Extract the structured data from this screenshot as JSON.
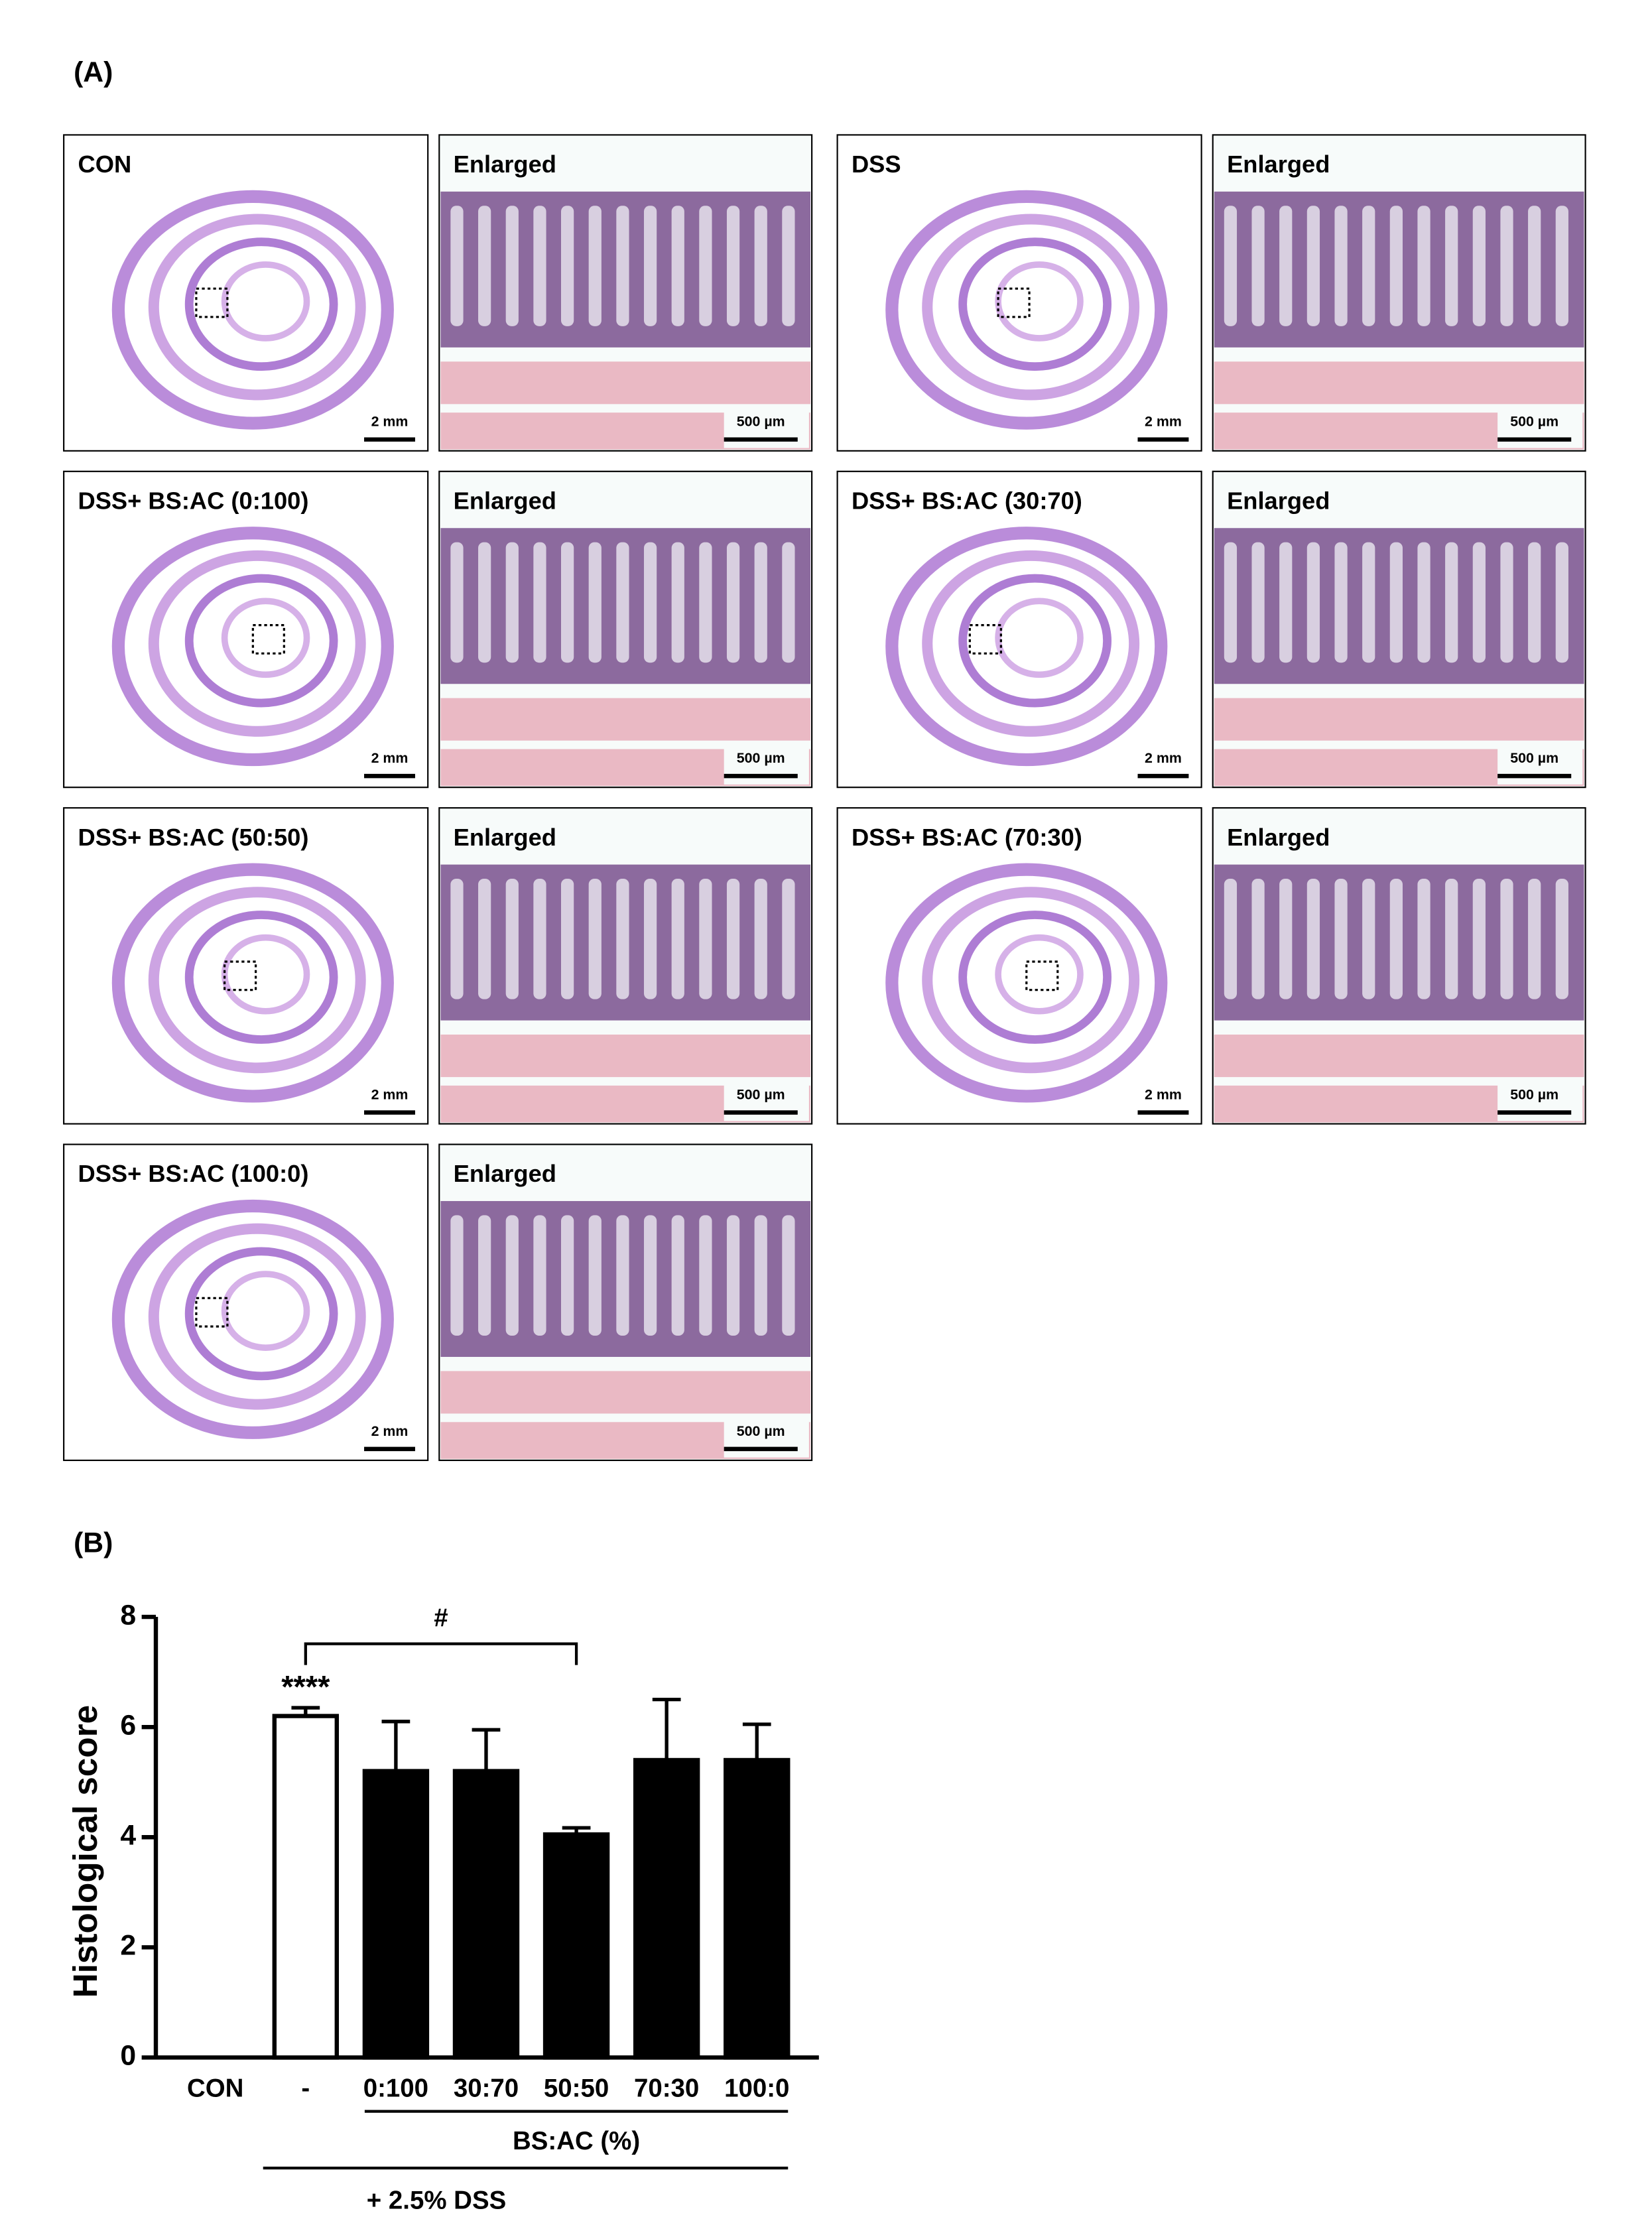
{
  "panel_a": {
    "label": "(A)",
    "panels": [
      {
        "title": "CON",
        "enlarged": "Enlarged",
        "scale": "2 mm",
        "enlarged_scale": "500 µm"
      },
      {
        "title": "DSS",
        "enlarged": "Enlarged",
        "scale": "2 mm",
        "enlarged_scale": "500 µm"
      },
      {
        "title": "DSS+ BS:AC (0:100)",
        "enlarged": "Enlarged",
        "scale": "2 mm",
        "enlarged_scale": "500 µm"
      },
      {
        "title": "DSS+ BS:AC (30:70)",
        "enlarged": "Enlarged",
        "scale": "2 mm",
        "enlarged_scale": "500 µm"
      },
      {
        "title": "DSS+ BS:AC (50:50)",
        "enlarged": "Enlarged",
        "scale": "2 mm",
        "enlarged_scale": "500 µm"
      },
      {
        "title": "DSS+ BS:AC (70:30)",
        "enlarged": "Enlarged",
        "scale": "2 mm",
        "enlarged_scale": "500 µm"
      },
      {
        "title": "DSS+ BS:AC (100:0)",
        "enlarged": "Enlarged",
        "scale": "2 mm",
        "enlarged_scale": "500 µm"
      }
    ]
  },
  "chart_data": {
    "type": "bar",
    "label": "(B)",
    "y_label": "Histological score",
    "categories": [
      "CON",
      "-",
      "0:100",
      "30:70",
      "50:50",
      "70:30",
      "100:0"
    ],
    "values": [
      0,
      6.2,
      5.2,
      5.2,
      4.05,
      5.4,
      5.4
    ],
    "errors": [
      0,
      0.15,
      0.9,
      0.75,
      0.12,
      1.1,
      0.65
    ],
    "colors": [
      "#000000",
      "#ffffff",
      "#000000",
      "#000000",
      "#000000",
      "#000000",
      "#000000"
    ],
    "ylim": [
      0,
      8
    ],
    "yticks": [
      0,
      2,
      4,
      6,
      8
    ],
    "annotations": [
      "****",
      "#"
    ],
    "group_labels": [
      "BS:AC (%)",
      "+ 2.5% DSS"
    ]
  }
}
